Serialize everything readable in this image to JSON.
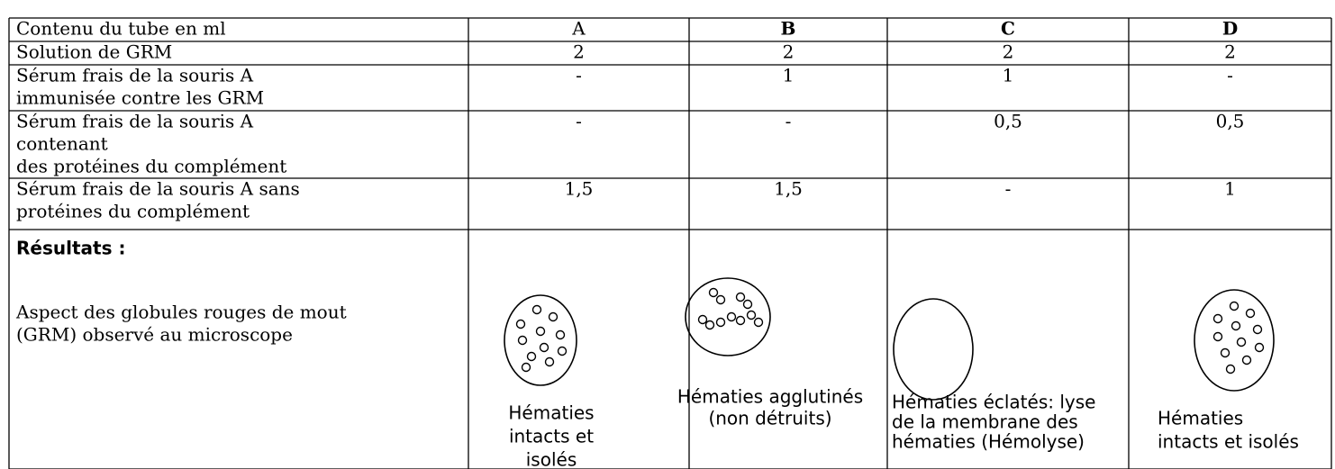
{
  "table": {
    "header": [
      "Contenu du tube en ml",
      "A",
      "B",
      "C",
      "D"
    ],
    "rows": [
      [
        [
          "Solution de GRM"
        ],
        [
          "2"
        ],
        [
          "2"
        ],
        [
          "2"
        ],
        [
          "2"
        ]
      ],
      [
        [
          "Sérum frais de la souris A",
          "immunisée contre les GRM"
        ],
        [
          "-"
        ],
        [
          "1"
        ],
        [
          "1"
        ],
        [
          "-"
        ]
      ],
      [
        [
          "Sérum frais de la souris A",
          "contenant",
          "des protéines du complément"
        ],
        [
          "-"
        ],
        [
          "-"
        ],
        [
          "0,5"
        ],
        [
          "0,5"
        ]
      ],
      [
        [
          "Sérum frais de la souris A sans",
          "protéines du complément"
        ],
        [
          "1,5"
        ],
        [
          "1,5"
        ],
        [
          "-"
        ],
        [
          "1"
        ]
      ]
    ],
    "results": {
      "title": "Résultats :",
      "description": [
        "Aspect des globules rouges de mout",
        "(GRM) observé au microscope"
      ],
      "captions": [
        [
          "Hématies",
          "intacts et",
          "isolés"
        ],
        [
          "Hématies agglutinés",
          "(non détruits)"
        ],
        [
          "Hématies éclatés: lyse",
          "de la membrane des",
          "hématies (Hémolyse)"
        ],
        [
          "Hématies",
          "intacts et isolés"
        ]
      ]
    }
  }
}
